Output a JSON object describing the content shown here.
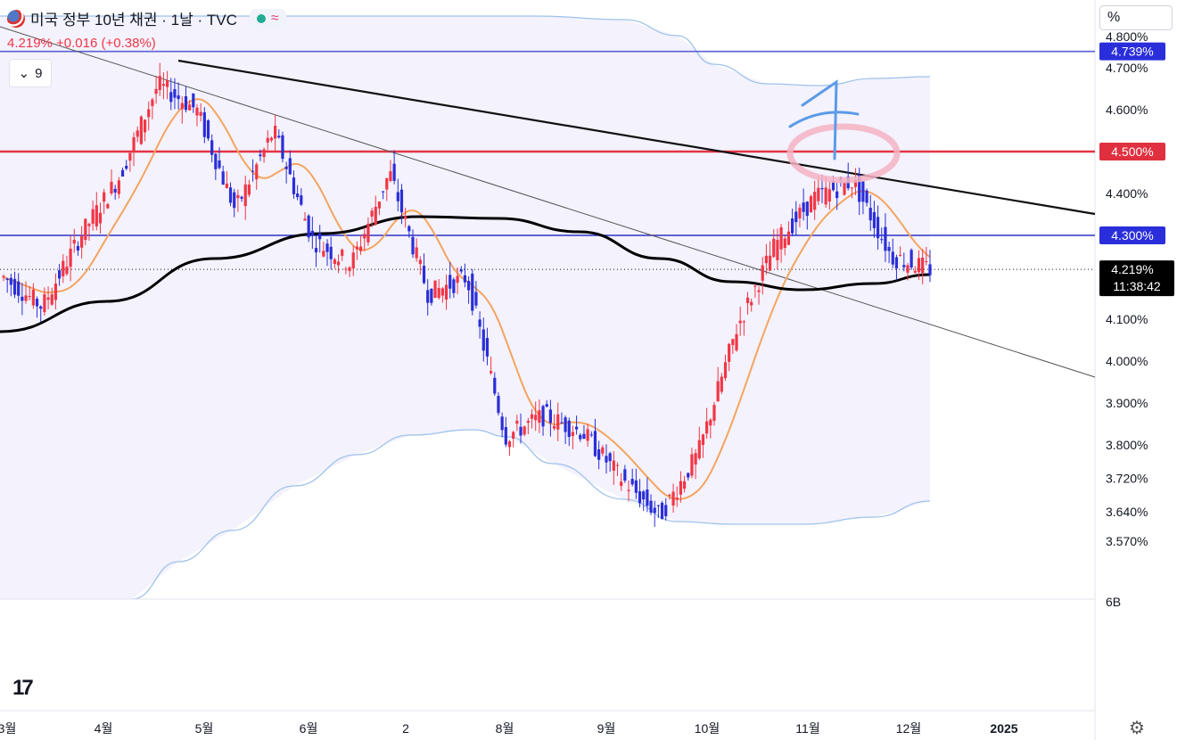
{
  "header": {
    "symbol_title": "미국 정부 10년 채권 · 1날 · TVC",
    "status_icon": "market-open-dot",
    "wave_icon": "≈",
    "quote": "4.219% +0.016 (+0.38%)",
    "indicators_label": "9",
    "unit_button": "%"
  },
  "price_axis": {
    "ticks": [
      "4.800%",
      "4.700%",
      "4.600%",
      "4.400%",
      "4.100%",
      "4.000%",
      "3.900%",
      "3.800%",
      "3.720%",
      "3.640%",
      "3.570%",
      "6B"
    ],
    "badges": [
      {
        "label": "4.739%",
        "value": 4.739,
        "bg": "#2a2eda",
        "line": "#5b5fd6"
      },
      {
        "label": "4.500%",
        "value": 4.5,
        "bg": "#e0303f",
        "line": "#e53345"
      },
      {
        "label": "4.300%",
        "value": 4.3,
        "bg": "#2a2eda",
        "line": "#2f33c8"
      }
    ],
    "last_price": {
      "label": "4.219%",
      "value": 4.219,
      "countdown": "11:38:42"
    }
  },
  "time_axis": {
    "labels": [
      "3월",
      "4월",
      "5월",
      "6월",
      "2",
      "8월",
      "9월",
      "10월",
      "11월",
      "12월",
      "2025"
    ]
  },
  "colors": {
    "up": "#f23645",
    "down": "#2a2ed6",
    "ma_fast": "#f4a460",
    "ma_slow": "#000000",
    "band": "#9fc2ea",
    "band_fill": "#f3f2fd",
    "annotation_blue": "#5b9be8",
    "annotation_pink": "#f5b3c3"
  },
  "chart_data": {
    "type": "candlestick",
    "title": "미국 정부 10년 채권 · 1날 · TVC",
    "unit": "%",
    "ylim": [
      3.5,
      4.82
    ],
    "last": 4.219,
    "change": "+0.016 (+0.38%)",
    "horizontal_levels": [
      4.739,
      4.5,
      4.3
    ],
    "x_months": [
      "3월",
      "4월",
      "5월",
      "6월",
      "2",
      "8월",
      "9월",
      "10월",
      "11월",
      "12월",
      "2025"
    ],
    "annotation": "A",
    "close_path": [
      {
        "month": "3월",
        "close": 4.2
      },
      {
        "month": "3월 말",
        "close": 4.13
      },
      {
        "month": "4월 초",
        "close": 4.3
      },
      {
        "month": "4월 중",
        "close": 4.44
      },
      {
        "month": "4월 말",
        "close": 4.66
      },
      {
        "month": "5월 초",
        "close": 4.6
      },
      {
        "month": "5월 중",
        "close": 4.36
      },
      {
        "month": "5월 말",
        "close": 4.55
      },
      {
        "month": "6월 초",
        "close": 4.29
      },
      {
        "month": "6월 중",
        "close": 4.23
      },
      {
        "month": "7월 초",
        "close": 4.45
      },
      {
        "month": "7월 중",
        "close": 4.16
      },
      {
        "month": "7월 말",
        "close": 4.2
      },
      {
        "month": "8월 초",
        "close": 3.82
      },
      {
        "month": "8월 중",
        "close": 3.87
      },
      {
        "month": "8월 말",
        "close": 3.83
      },
      {
        "month": "9월 초",
        "close": 3.72
      },
      {
        "month": "9월 중",
        "close": 3.63
      },
      {
        "month": "10월 초",
        "close": 3.78
      },
      {
        "month": "10월 중",
        "close": 4.08
      },
      {
        "month": "10월 말",
        "close": 4.28
      },
      {
        "month": "11월 초",
        "close": 4.39
      },
      {
        "month": "11월 중",
        "close": 4.43
      },
      {
        "month": "11월 말",
        "close": 4.25
      },
      {
        "month": "12월",
        "close": 4.219
      }
    ]
  }
}
